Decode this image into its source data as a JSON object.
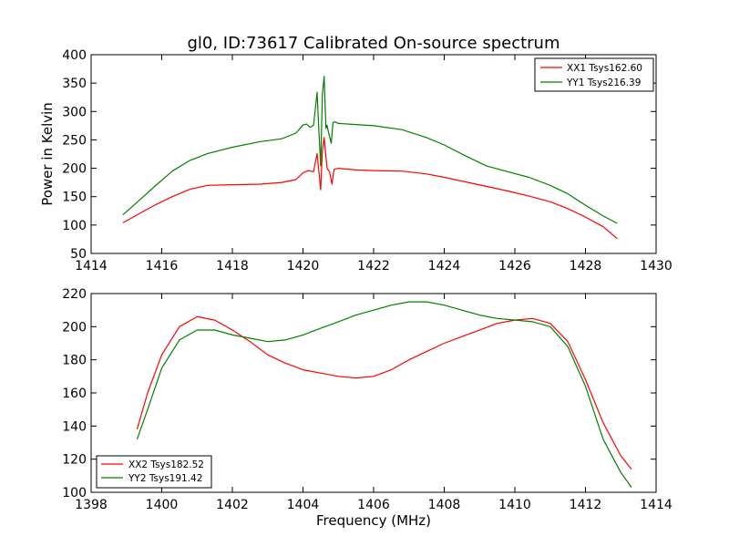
{
  "chart_data": [
    {
      "type": "line",
      "title": "gl0, ID:73617 Calibrated On-source spectrum",
      "xlabel": "",
      "ylabel": "Power in Kelvin",
      "xlim": [
        1414,
        1430
      ],
      "ylim": [
        50,
        400
      ],
      "xticks": [
        "1414",
        "1416",
        "1418",
        "1420",
        "1422",
        "1424",
        "1426",
        "1428",
        "1430"
      ],
      "yticks": [
        "50",
        "100",
        "150",
        "200",
        "250",
        "300",
        "350",
        "400"
      ],
      "grid": false,
      "legend_position": "top-right",
      "series": [
        {
          "name": "XX1 Tsys162.60",
          "color": "#ff0000",
          "x": [
            1414.9,
            1415.3,
            1415.8,
            1416.3,
            1416.8,
            1417.3,
            1418.0,
            1418.8,
            1419.4,
            1419.8,
            1420.0,
            1420.15,
            1420.3,
            1420.4,
            1420.5,
            1420.55,
            1420.6,
            1420.68,
            1420.75,
            1420.82,
            1420.88,
            1421.0,
            1421.5,
            1422.0,
            1422.8,
            1423.5,
            1424.0,
            1424.6,
            1425.2,
            1425.8,
            1426.4,
            1427.0,
            1427.5,
            1428.0,
            1428.5,
            1428.9
          ],
          "y": [
            104,
            118,
            135,
            150,
            163,
            170,
            171,
            172,
            175,
            180,
            192,
            196,
            194,
            226,
            162,
            232,
            254,
            200,
            194,
            172,
            198,
            200,
            197,
            196,
            195,
            190,
            184,
            176,
            168,
            160,
            151,
            141,
            129,
            114,
            97,
            76
          ]
        },
        {
          "name": "YY1 Tsys216.39",
          "color": "#008000",
          "x": [
            1414.9,
            1415.3,
            1415.8,
            1416.3,
            1416.8,
            1417.3,
            1418.0,
            1418.8,
            1419.4,
            1419.8,
            1420.0,
            1420.1,
            1420.2,
            1420.3,
            1420.4,
            1420.45,
            1420.5,
            1420.55,
            1420.6,
            1420.65,
            1420.68,
            1420.72,
            1420.8,
            1420.85,
            1420.9,
            1421.0,
            1421.5,
            1422.0,
            1422.8,
            1423.5,
            1424.0,
            1424.6,
            1425.2,
            1425.8,
            1426.4,
            1427.0,
            1427.5,
            1428.0,
            1428.5,
            1428.9
          ],
          "y": [
            118,
            140,
            168,
            195,
            214,
            226,
            237,
            247,
            252,
            262,
            276,
            278,
            272,
            276,
            334,
            267,
            204,
            330,
            362,
            270,
            276,
            264,
            244,
            280,
            282,
            279,
            277,
            275,
            268,
            254,
            241,
            222,
            204,
            194,
            184,
            170,
            155,
            135,
            116,
            103
          ]
        }
      ]
    },
    {
      "type": "line",
      "title": "",
      "xlabel": "Frequency (MHz)",
      "ylabel": "",
      "xlim": [
        1398,
        1414
      ],
      "ylim": [
        100,
        220
      ],
      "xticks": [
        "1398",
        "1400",
        "1402",
        "1404",
        "1406",
        "1408",
        "1410",
        "1412",
        "1414"
      ],
      "yticks": [
        "100",
        "120",
        "140",
        "160",
        "180",
        "200",
        "220"
      ],
      "grid": false,
      "legend_position": "bottom-left",
      "series": [
        {
          "name": "XX2 Tsys182.52",
          "color": "#ff0000",
          "x": [
            1399.3,
            1399.6,
            1400.0,
            1400.5,
            1401.0,
            1401.5,
            1402.0,
            1402.5,
            1403.0,
            1403.5,
            1404.0,
            1404.5,
            1405.0,
            1405.5,
            1406.0,
            1406.5,
            1407.0,
            1407.5,
            1408.0,
            1408.5,
            1409.0,
            1409.5,
            1410.0,
            1410.5,
            1411.0,
            1411.5,
            1412.0,
            1412.5,
            1413.0,
            1413.3
          ],
          "y": [
            138,
            160,
            183,
            200,
            206,
            204,
            198,
            191,
            183,
            178,
            174,
            172,
            170,
            169,
            170,
            174,
            180,
            185,
            190,
            194,
            198,
            202,
            204,
            205,
            202,
            191,
            168,
            142,
            122,
            114
          ]
        },
        {
          "name": "YY2 Tsys191.42",
          "color": "#008000",
          "x": [
            1399.3,
            1399.6,
            1400.0,
            1400.5,
            1401.0,
            1401.5,
            1402.0,
            1402.5,
            1403.0,
            1403.5,
            1404.0,
            1404.5,
            1405.0,
            1405.5,
            1406.0,
            1406.5,
            1407.0,
            1407.5,
            1408.0,
            1408.5,
            1409.0,
            1409.5,
            1410.0,
            1410.5,
            1411.0,
            1411.5,
            1412.0,
            1412.5,
            1413.0,
            1413.3
          ],
          "y": [
            132,
            150,
            175,
            192,
            198,
            198,
            195,
            193,
            191,
            192,
            195,
            199,
            203,
            207,
            210,
            213,
            215,
            215,
            213,
            210,
            207,
            205,
            204,
            203,
            200,
            188,
            164,
            132,
            112,
            103
          ]
        }
      ]
    }
  ]
}
